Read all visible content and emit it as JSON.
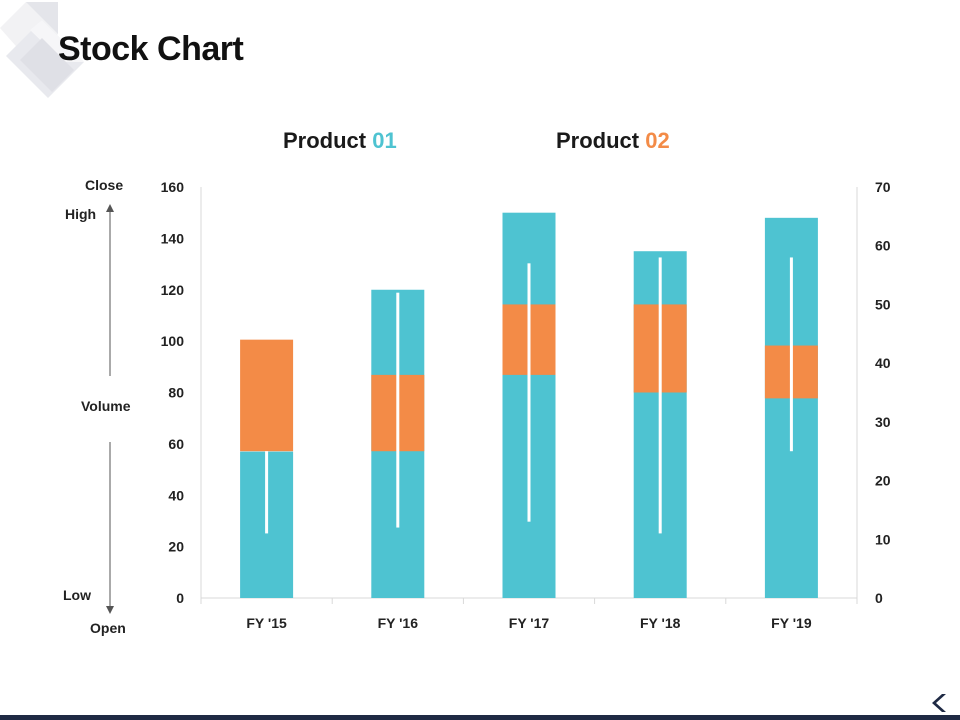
{
  "title": "Stock Chart",
  "legend": {
    "product1": {
      "prefix": "Product",
      "number": "01",
      "color": "#4ec3d1"
    },
    "product2": {
      "prefix": "Product",
      "number": "02",
      "color": "#f38b47"
    }
  },
  "side_labels": {
    "close": "Close",
    "high": "High",
    "volume": "Volume",
    "low": "Low",
    "open": "Open"
  },
  "colors": {
    "volume": "#4ec3d1",
    "box": "#f38b47",
    "wick": "#ffffff",
    "grid": "#d9d9d9",
    "footer": "#1f2a44"
  },
  "icons": {
    "corner": "diamond-decoration-icon",
    "footer": "chevron-left-icon"
  },
  "chart_data": {
    "type": "bar",
    "subtype": "stock-volume-open-high-low-close",
    "categories": [
      "FY '15",
      "FY '16",
      "FY '17",
      "FY '18",
      "FY '19"
    ],
    "left_axis": {
      "ticks": [
        "0",
        "20",
        "40",
        "60",
        "80",
        "100",
        "120",
        "140",
        "160"
      ],
      "ylim": [
        0,
        160
      ]
    },
    "right_axis": {
      "ticks": [
        "0",
        "10",
        "20",
        "30",
        "40",
        "50",
        "60",
        "70"
      ],
      "ylim": [
        0,
        70
      ]
    },
    "series": [
      {
        "name": "Volume",
        "axis": "left",
        "values": [
          57,
          120,
          150,
          135,
          148
        ]
      },
      {
        "name": "Open",
        "axis": "right",
        "values": [
          25,
          25,
          38,
          35,
          34
        ]
      },
      {
        "name": "High",
        "axis": "right",
        "values": [
          25,
          52,
          57,
          58,
          58
        ]
      },
      {
        "name": "Low",
        "axis": "right",
        "values": [
          11,
          12,
          13,
          11,
          25
        ]
      },
      {
        "name": "Close",
        "axis": "right",
        "values": [
          44,
          38,
          50,
          50,
          43
        ]
      }
    ],
    "grid": false
  }
}
